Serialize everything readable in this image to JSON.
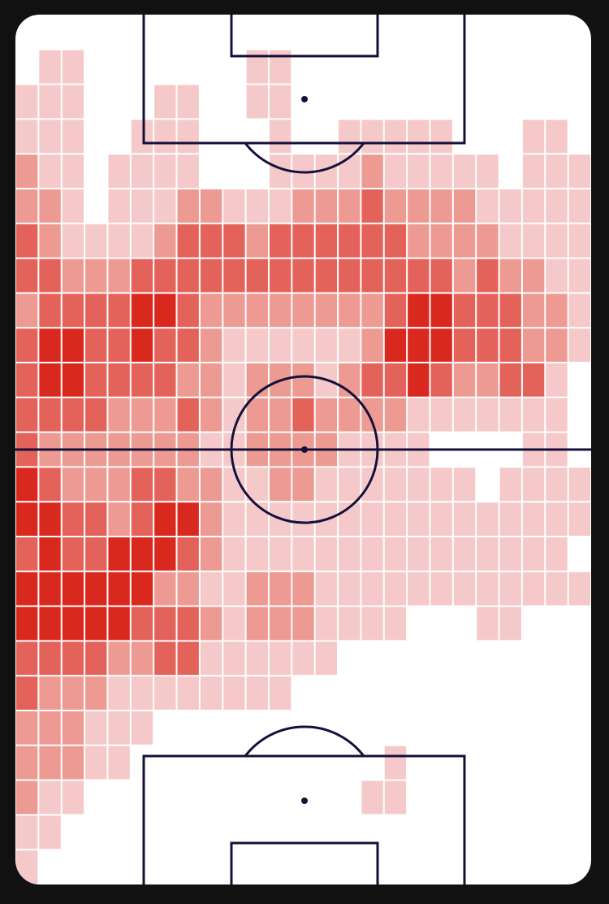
{
  "heatmap": {
    "colors": [
      "#ffffff",
      "#f5c9c9",
      "#ed9a92",
      "#e3625a",
      "#d9291f"
    ],
    "rows": [
      [
        0,
        0,
        0,
        0,
        0,
        0,
        0,
        0,
        0,
        0,
        0,
        0,
        0,
        0,
        0,
        0,
        0,
        0,
        0,
        0,
        0,
        0,
        0,
        0,
        0
      ],
      [
        0,
        1,
        1,
        0,
        0,
        0,
        0,
        0,
        0,
        0,
        1,
        1,
        0,
        0,
        0,
        0,
        0,
        0,
        0,
        0,
        0,
        0,
        0,
        0,
        0
      ],
      [
        1,
        1,
        1,
        0,
        0,
        0,
        1,
        1,
        0,
        0,
        1,
        1,
        0,
        0,
        0,
        0,
        0,
        0,
        0,
        0,
        0,
        0,
        0,
        0,
        0
      ],
      [
        1,
        1,
        1,
        0,
        0,
        1,
        1,
        1,
        0,
        0,
        0,
        1,
        0,
        0,
        1,
        1,
        1,
        1,
        1,
        0,
        0,
        0,
        1,
        1,
        0
      ],
      [
        2,
        1,
        1,
        0,
        1,
        1,
        1,
        1,
        0,
        0,
        0,
        1,
        1,
        1,
        1,
        2,
        1,
        1,
        1,
        1,
        1,
        0,
        1,
        1,
        1
      ],
      [
        2,
        2,
        1,
        0,
        1,
        1,
        1,
        2,
        2,
        1,
        1,
        1,
        2,
        2,
        2,
        3,
        2,
        2,
        2,
        2,
        1,
        1,
        1,
        1,
        1
      ],
      [
        3,
        2,
        1,
        1,
        1,
        1,
        2,
        3,
        3,
        3,
        2,
        3,
        3,
        3,
        3,
        3,
        3,
        2,
        2,
        2,
        2,
        1,
        1,
        1,
        1
      ],
      [
        3,
        3,
        2,
        2,
        2,
        3,
        3,
        3,
        3,
        3,
        3,
        3,
        3,
        3,
        3,
        3,
        3,
        3,
        3,
        2,
        3,
        2,
        2,
        1,
        1
      ],
      [
        2,
        3,
        3,
        3,
        3,
        4,
        4,
        3,
        2,
        2,
        2,
        2,
        2,
        2,
        2,
        2,
        3,
        4,
        4,
        3,
        3,
        3,
        2,
        2,
        1
      ],
      [
        3,
        4,
        4,
        3,
        3,
        4,
        3,
        3,
        2,
        1,
        1,
        1,
        1,
        1,
        1,
        2,
        4,
        4,
        4,
        3,
        3,
        3,
        2,
        2,
        1
      ],
      [
        3,
        4,
        4,
        3,
        3,
        3,
        3,
        2,
        2,
        1,
        2,
        2,
        2,
        1,
        2,
        3,
        3,
        4,
        3,
        2,
        2,
        3,
        3,
        1,
        0
      ],
      [
        3,
        3,
        3,
        3,
        2,
        2,
        2,
        3,
        2,
        1,
        2,
        2,
        3,
        2,
        2,
        2,
        2,
        1,
        1,
        1,
        1,
        1,
        1,
        1,
        0
      ],
      [
        3,
        2,
        2,
        2,
        2,
        2,
        2,
        2,
        1,
        1,
        2,
        2,
        2,
        2,
        1,
        1,
        1,
        1,
        0,
        0,
        0,
        0,
        1,
        1,
        0
      ],
      [
        4,
        3,
        2,
        2,
        2,
        3,
        3,
        2,
        2,
        1,
        1,
        2,
        2,
        1,
        1,
        1,
        1,
        1,
        1,
        1,
        0,
        1,
        1,
        1,
        1
      ],
      [
        4,
        4,
        3,
        3,
        2,
        3,
        4,
        4,
        2,
        1,
        1,
        1,
        1,
        1,
        1,
        1,
        1,
        1,
        1,
        1,
        1,
        1,
        1,
        1,
        1
      ],
      [
        3,
        4,
        3,
        3,
        4,
        4,
        4,
        3,
        2,
        1,
        1,
        1,
        1,
        1,
        1,
        1,
        1,
        1,
        1,
        1,
        1,
        1,
        1,
        1,
        0
      ],
      [
        4,
        4,
        4,
        4,
        4,
        4,
        2,
        2,
        1,
        1,
        2,
        2,
        2,
        1,
        1,
        1,
        1,
        1,
        1,
        1,
        1,
        1,
        1,
        1,
        1
      ],
      [
        4,
        4,
        4,
        4,
        4,
        3,
        3,
        3,
        2,
        1,
        2,
        2,
        2,
        1,
        1,
        1,
        1,
        0,
        0,
        0,
        1,
        1,
        0,
        0,
        0
      ],
      [
        3,
        3,
        3,
        3,
        2,
        2,
        3,
        3,
        1,
        1,
        1,
        1,
        1,
        1,
        0,
        0,
        0,
        0,
        0,
        0,
        0,
        0,
        0,
        0,
        0
      ],
      [
        3,
        2,
        2,
        2,
        1,
        1,
        1,
        1,
        1,
        1,
        1,
        1,
        0,
        0,
        0,
        0,
        0,
        0,
        0,
        0,
        0,
        0,
        0,
        0,
        0
      ],
      [
        2,
        2,
        2,
        1,
        1,
        1,
        0,
        0,
        0,
        0,
        0,
        0,
        0,
        0,
        0,
        0,
        0,
        0,
        0,
        0,
        0,
        0,
        0,
        0,
        0
      ],
      [
        2,
        2,
        2,
        1,
        1,
        0,
        0,
        0,
        0,
        0,
        0,
        0,
        0,
        0,
        0,
        0,
        1,
        0,
        0,
        0,
        0,
        0,
        0,
        0,
        0
      ],
      [
        2,
        1,
        1,
        0,
        0,
        0,
        0,
        0,
        0,
        0,
        0,
        0,
        0,
        0,
        0,
        1,
        1,
        0,
        0,
        0,
        0,
        0,
        0,
        0,
        0
      ],
      [
        1,
        1,
        0,
        0,
        0,
        0,
        0,
        0,
        0,
        0,
        0,
        0,
        0,
        0,
        0,
        0,
        0,
        0,
        0,
        0,
        0,
        0,
        0,
        0,
        0
      ],
      [
        1,
        0,
        0,
        0,
        0,
        0,
        0,
        0,
        0,
        0,
        0,
        0,
        0,
        0,
        0,
        0,
        0,
        0,
        0,
        0,
        0,
        0,
        0,
        0,
        0
      ]
    ]
  }
}
